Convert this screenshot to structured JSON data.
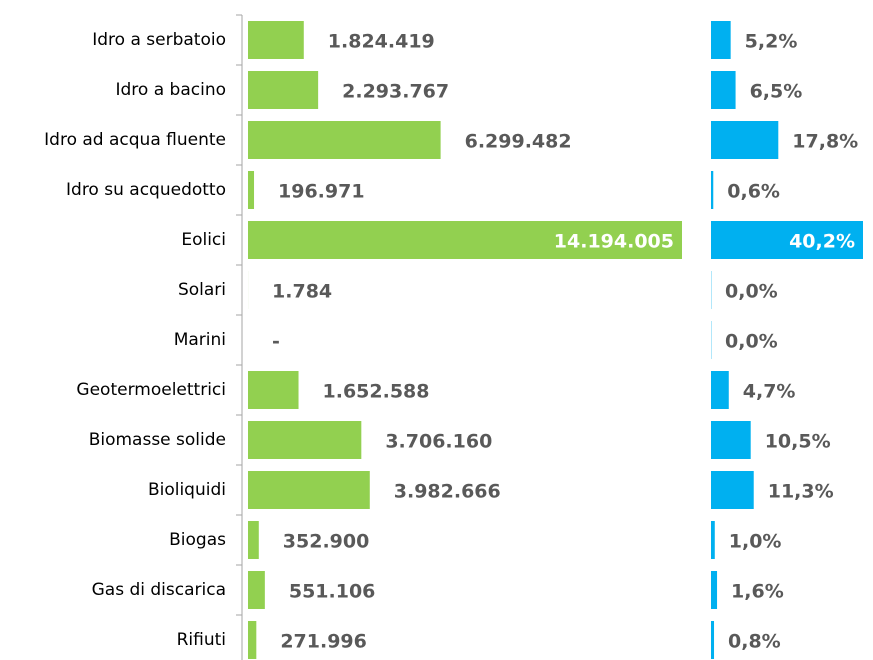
{
  "chart_data": [
    {
      "type": "bar",
      "orientation": "horizontal",
      "color": "#92d050",
      "categories": [
        "Idro a serbatoio",
        "Idro a bacino",
        "Idro ad acqua fluente",
        "Idro su acquedotto",
        "Eolici",
        "Solari",
        "Marini",
        "Geotermoelettrici",
        "Biomasse solide",
        "Bioliquidi",
        "Biogas",
        "Gas di discarica",
        "Rifiuti"
      ],
      "values": [
        1824419,
        2293767,
        6299482,
        196971,
        14194005,
        1784,
        0,
        1652588,
        3706160,
        3982666,
        352900,
        551106,
        271996
      ],
      "value_labels": [
        "1.824.419",
        "2.293.767",
        "6.299.482",
        "196.971",
        "14.194.005",
        "1.784",
        "-",
        "1.652.588",
        "3.706.160",
        "3.982.666",
        "352.900",
        "551.106",
        "271.996"
      ]
    },
    {
      "type": "bar",
      "orientation": "horizontal",
      "color": "#00b0f0",
      "values": [
        5.2,
        6.5,
        17.8,
        0.6,
        40.2,
        0.0,
        0.0,
        4.7,
        10.5,
        11.3,
        1.0,
        1.6,
        0.8
      ],
      "value_labels": [
        "5,2%",
        "6,5%",
        "17,8%",
        "0,6%",
        "40,2%",
        "0,0%",
        "0,0%",
        "4,7%",
        "10,5%",
        "11,3%",
        "1,0%",
        "1,6%",
        "0,8%"
      ]
    }
  ]
}
